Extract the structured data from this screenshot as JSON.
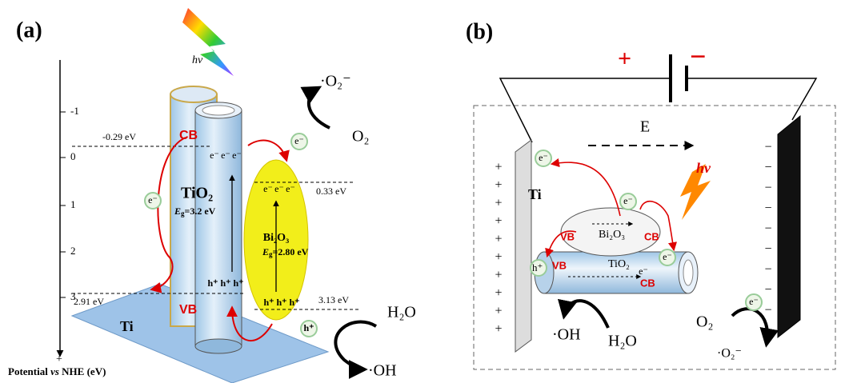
{
  "panel_a": {
    "label": "(a)",
    "light": "hv",
    "superoxide": "·O₂⁻",
    "oxygen": "O₂",
    "axis": {
      "ticks": [
        "-1",
        "0",
        "1",
        "2",
        "3"
      ],
      "plus": "+",
      "title": [
        "Potential ",
        "vs",
        " NHE (eV)"
      ]
    },
    "levels": {
      "tio2_cb": "-0.29 eV",
      "bi2o3_cb": "0.33 eV",
      "tio2_vb": "2.91 eV",
      "bi2o3_vb": "3.13 eV"
    },
    "cb": "CB",
    "vb": "VB",
    "tio2": {
      "name": "TiO₂",
      "eg": [
        "E",
        "g",
        "=3.2 eV"
      ]
    },
    "bi2o3": {
      "name": "Bi₂O₃",
      "eg": [
        "E",
        "g",
        "=2.80 eV"
      ]
    },
    "electrons": [
      "e⁻",
      "e⁻",
      "e⁻",
      "e⁻",
      "e⁻",
      "e⁻",
      "e⁻",
      "e⁻"
    ],
    "holes": [
      "h⁺",
      "h⁺",
      "h⁺",
      "h⁺",
      "h⁺",
      "h⁺",
      "h⁺"
    ],
    "water": "H₂O",
    "hydroxyl": "·OH",
    "substrate": "Ti"
  },
  "panel_b": {
    "label": "(b)",
    "battery_plus": "+",
    "battery_minus": "−",
    "field": "E",
    "substrate": "Ti",
    "light": "hv",
    "electrons": [
      "e⁻",
      "e⁻",
      "e⁻",
      "e⁻",
      "e⁻"
    ],
    "hole": "h⁺",
    "bi2o3": {
      "name": "Bi₂O₃",
      "vb": "VB",
      "cb": "CB"
    },
    "tio2": {
      "name": "TiO₂",
      "vb": "VB",
      "cb": "CB"
    },
    "hydroxyl": "·OH",
    "water": "H₂O",
    "oxygen": "O₂",
    "superoxide": "·O₂⁻",
    "plus_signs": [
      "+",
      "+",
      "+",
      "+",
      "+",
      "+",
      "+",
      "+",
      "+",
      "+"
    ],
    "minus_signs": [
      "−",
      "−",
      "−",
      "−",
      "−",
      "−",
      "−",
      "−",
      "−"
    ]
  }
}
